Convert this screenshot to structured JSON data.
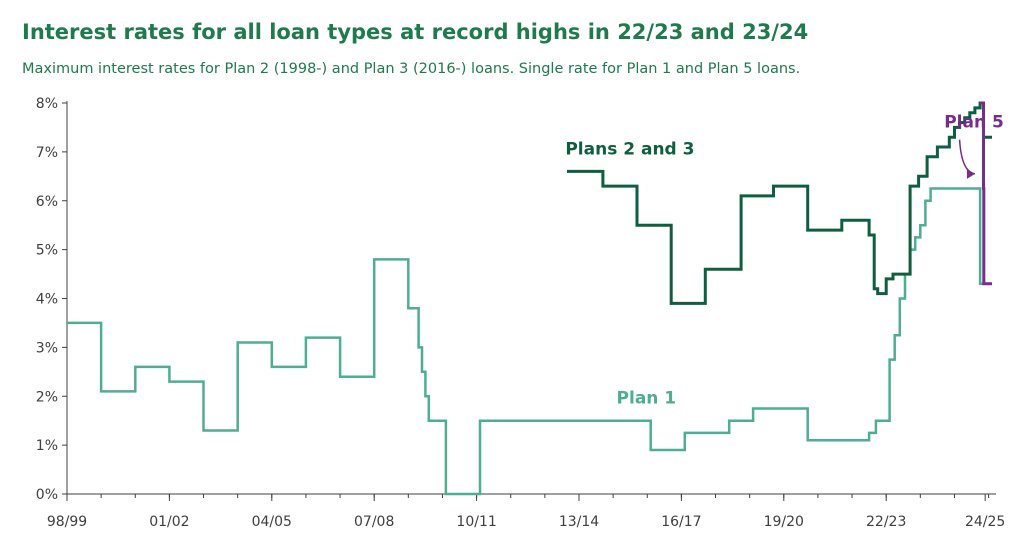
{
  "title": "Interest rates for all loan types at record highs in 22/23 and 23/24",
  "subtitle": "Maximum interest rates for Plan 2 (1998-) and Plan 3 (2016-) loans. Single rate for Plan 1 and Plan 5 loans.",
  "colors": {
    "plan1": "#4fae92",
    "plan23": "#0f5e40",
    "plan5": "#7b2b8e",
    "title": "#1f7a4d",
    "axis": "#404040",
    "gridline": "#d9d9d9"
  },
  "chart_data": {
    "type": "line",
    "step": true,
    "x_tick_labels": [
      "98/99",
      "01/02",
      "04/05",
      "07/08",
      "10/11",
      "13/14",
      "16/17",
      "19/20",
      "22/23",
      "24/25"
    ],
    "x_tick_years": [
      1998,
      2001,
      2004,
      2007,
      2010,
      2013,
      2016,
      2019,
      2022,
      2024.9
    ],
    "xlim": [
      1998,
      2025.1
    ],
    "ylim": [
      0,
      8
    ],
    "y_ticks": [
      0,
      1,
      2,
      3,
      4,
      5,
      6,
      7,
      8
    ],
    "y_tick_labels": [
      "0%",
      "1%",
      "2%",
      "3%",
      "4%",
      "5%",
      "6%",
      "7%",
      "8%"
    ],
    "grid": false,
    "series": [
      {
        "name": "Plan 1",
        "key": "plan1",
        "points": [
          [
            1998.0,
            3.5
          ],
          [
            1999.0,
            2.1
          ],
          [
            2000.0,
            2.6
          ],
          [
            2001.0,
            2.3
          ],
          [
            2002.0,
            1.3
          ],
          [
            2003.0,
            3.1
          ],
          [
            2004.0,
            2.6
          ],
          [
            2005.0,
            3.2
          ],
          [
            2006.0,
            2.4
          ],
          [
            2007.0,
            4.8
          ],
          [
            2008.0,
            3.8
          ],
          [
            2008.3,
            3.0
          ],
          [
            2008.4,
            2.5
          ],
          [
            2008.5,
            2.0
          ],
          [
            2008.6,
            1.5
          ],
          [
            2009.1,
            0.0
          ],
          [
            2010.1,
            1.5
          ],
          [
            2015.1,
            0.9
          ],
          [
            2016.1,
            1.25
          ],
          [
            2017.4,
            1.5
          ],
          [
            2018.1,
            1.75
          ],
          [
            2019.7,
            1.1
          ],
          [
            2021.5,
            1.25
          ],
          [
            2021.7,
            1.5
          ],
          [
            2022.1,
            2.75
          ],
          [
            2022.25,
            3.25
          ],
          [
            2022.4,
            4.0
          ],
          [
            2022.55,
            4.5
          ],
          [
            2022.7,
            5.0
          ],
          [
            2022.85,
            5.25
          ],
          [
            2023.0,
            5.5
          ],
          [
            2023.15,
            6.0
          ],
          [
            2023.3,
            6.25
          ],
          [
            2024.75,
            4.3
          ],
          [
            2025.1,
            4.3
          ]
        ]
      },
      {
        "name": "Plans 2 and 3",
        "key": "plan23",
        "points": [
          [
            2012.65,
            6.6
          ],
          [
            2013.7,
            6.3
          ],
          [
            2014.7,
            5.5
          ],
          [
            2015.7,
            3.9
          ],
          [
            2016.7,
            4.6
          ],
          [
            2017.75,
            6.1
          ],
          [
            2018.7,
            6.3
          ],
          [
            2019.7,
            5.4
          ],
          [
            2020.7,
            5.6
          ],
          [
            2021.5,
            5.3
          ],
          [
            2021.65,
            4.2
          ],
          [
            2021.75,
            4.1
          ],
          [
            2022.0,
            4.4
          ],
          [
            2022.2,
            4.5
          ],
          [
            2022.7,
            6.3
          ],
          [
            2022.95,
            6.5
          ],
          [
            2023.2,
            6.9
          ],
          [
            2023.5,
            7.1
          ],
          [
            2023.85,
            7.3
          ],
          [
            2024.0,
            7.5
          ],
          [
            2024.15,
            7.6
          ],
          [
            2024.3,
            7.7
          ],
          [
            2024.45,
            7.8
          ],
          [
            2024.6,
            7.9
          ],
          [
            2024.75,
            8.0
          ],
          [
            2024.85,
            7.3
          ],
          [
            2025.1,
            7.3
          ]
        ]
      },
      {
        "name": "Plan 5",
        "key": "plan5",
        "points": [
          [
            2023.85,
            7.3
          ],
          [
            2024.0,
            7.5
          ],
          [
            2024.15,
            7.6
          ],
          [
            2024.3,
            7.7
          ],
          [
            2024.45,
            7.8
          ],
          [
            2024.6,
            7.9
          ],
          [
            2024.75,
            8.0
          ],
          [
            2024.85,
            6.25
          ],
          [
            2024.86,
            4.3
          ],
          [
            2025.1,
            4.3
          ]
        ]
      }
    ],
    "labels": [
      {
        "text": "Plans 2 and 3",
        "series": "plan23",
        "at": [
          2012.6,
          6.95
        ]
      },
      {
        "text": "Plan 1",
        "series": "plan1",
        "at": [
          2014.1,
          1.85
        ]
      },
      {
        "text": "Plan 5",
        "series": "plan5",
        "at": [
          2023.7,
          7.5
        ]
      }
    ],
    "annotation_arrow": {
      "series": "plan5",
      "from": [
        2024.15,
        7.25
      ],
      "to": [
        2024.6,
        6.55
      ]
    }
  }
}
